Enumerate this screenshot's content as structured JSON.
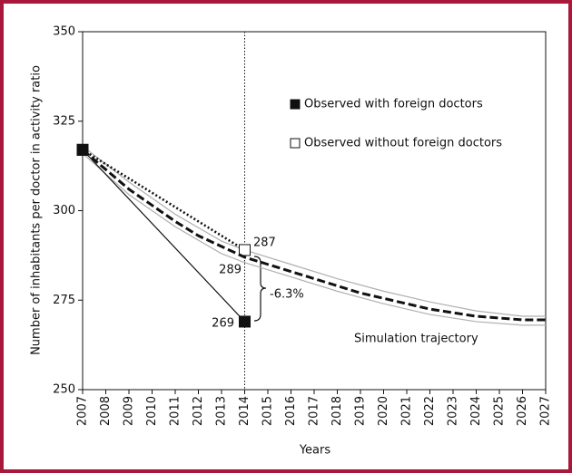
{
  "chart_data": {
    "type": "line",
    "x_label": "Years",
    "y_label": "Number of inhabitants per doctor in activity ratio",
    "xlim": [
      2007,
      2027
    ],
    "xticks": [
      2007,
      2008,
      2009,
      2010,
      2011,
      2012,
      2013,
      2014,
      2015,
      2016,
      2017,
      2018,
      2019,
      2020,
      2021,
      2022,
      2023,
      2024,
      2025,
      2026,
      2027
    ],
    "ylim": [
      250,
      350
    ],
    "yticks": [
      250,
      275,
      300,
      325,
      350
    ],
    "reference_x": 2014,
    "legend": "upper right",
    "band": {
      "color": "#b0b0b0",
      "x": [
        2007,
        2009,
        2011,
        2013,
        2014,
        2016,
        2018,
        2020,
        2022,
        2024,
        2026,
        2027
      ],
      "upper": [
        318,
        308,
        299,
        291.5,
        289,
        285,
        281,
        277.5,
        274.5,
        272,
        270.5,
        270.5
      ],
      "lower": [
        316,
        304.5,
        295.5,
        288,
        285.5,
        281.5,
        277.5,
        274,
        271,
        269,
        268,
        268
      ]
    },
    "series": [
      {
        "name": "Observed without foreign doctors",
        "color": "#111111",
        "style": "dotted",
        "marker": "open-square",
        "x": [
          2007,
          2014
        ],
        "values": [
          317,
          289
        ]
      },
      {
        "name": "Simulation trajectory",
        "color": "#111111",
        "style": "dashed",
        "marker": "none",
        "x": [
          2007,
          2008,
          2009,
          2010,
          2011,
          2012,
          2013,
          2014,
          2015,
          2016,
          2017,
          2018,
          2019,
          2020,
          2021,
          2022,
          2023,
          2024,
          2025,
          2026,
          2027
        ],
        "values": [
          317,
          311.5,
          306,
          301.5,
          297,
          293,
          290,
          287,
          285,
          283,
          281,
          279,
          277,
          275.5,
          274,
          272.5,
          271.5,
          270.5,
          270,
          269.5,
          269.5
        ]
      },
      {
        "name": "Observed with foreign doctors",
        "color": "#111111",
        "style": "solid",
        "marker": "filled-square",
        "x": [
          2007,
          2014
        ],
        "values": [
          317,
          269
        ]
      }
    ],
    "annotations": [
      "287",
      "289",
      "269",
      "-6.3%"
    ]
  }
}
